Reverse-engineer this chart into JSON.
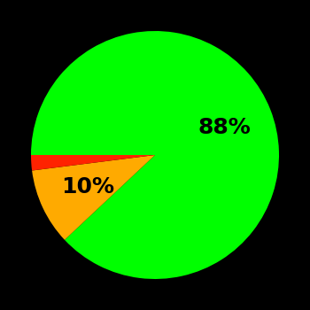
{
  "slices": [
    88,
    10,
    2
  ],
  "colors": [
    "#00ff00",
    "#ffaa00",
    "#ff2200"
  ],
  "labels": [
    "88%",
    "10%",
    ""
  ],
  "background_color": "#000000",
  "label_fontsize": 18,
  "label_fontweight": "bold",
  "startangle": 180,
  "figsize": [
    3.5,
    3.5
  ],
  "dpi": 100
}
